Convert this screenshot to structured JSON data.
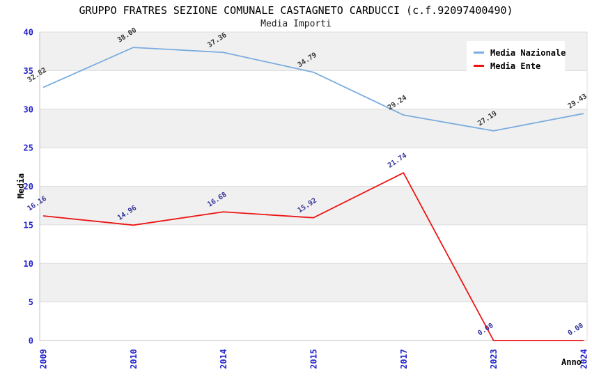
{
  "chart_data": {
    "type": "line",
    "title": "GRUPPO FRATRES SEZIONE COMUNALE CASTAGNETO CARDUCCI (c.f.92097400490)",
    "subtitle": "Media Importi",
    "xlabel": "Anno",
    "ylabel": "Media",
    "categories": [
      "2009",
      "2010",
      "2014",
      "2015",
      "2017",
      "2023",
      "2024"
    ],
    "series": [
      {
        "name": "Media Nazionale",
        "color": "#79ACDF",
        "label_color": "#383838",
        "values": [
          32.82,
          38.0,
          37.36,
          34.79,
          29.24,
          27.19,
          29.43
        ]
      },
      {
        "name": "Media Ente",
        "color": "#EC1515",
        "label_color": "#343499",
        "values": [
          16.16,
          14.96,
          16.68,
          15.92,
          21.74,
          0.0,
          0.0
        ]
      }
    ],
    "ylim": [
      0,
      40
    ],
    "ytick_step": 5,
    "yticks": [
      0,
      5,
      10,
      15,
      20,
      25,
      30,
      35,
      40
    ],
    "legend_position": "top-right",
    "grid": true,
    "value_label_decimals": 2,
    "colors": {
      "tick_label": "#2222CC",
      "band": "#F0F0F0",
      "gridline": "#DCDCDC",
      "axis": "#C0C0C0",
      "plot_border": "#DCDCDC",
      "legend_bg": "#FFFFFF",
      "title": "#000000"
    }
  }
}
